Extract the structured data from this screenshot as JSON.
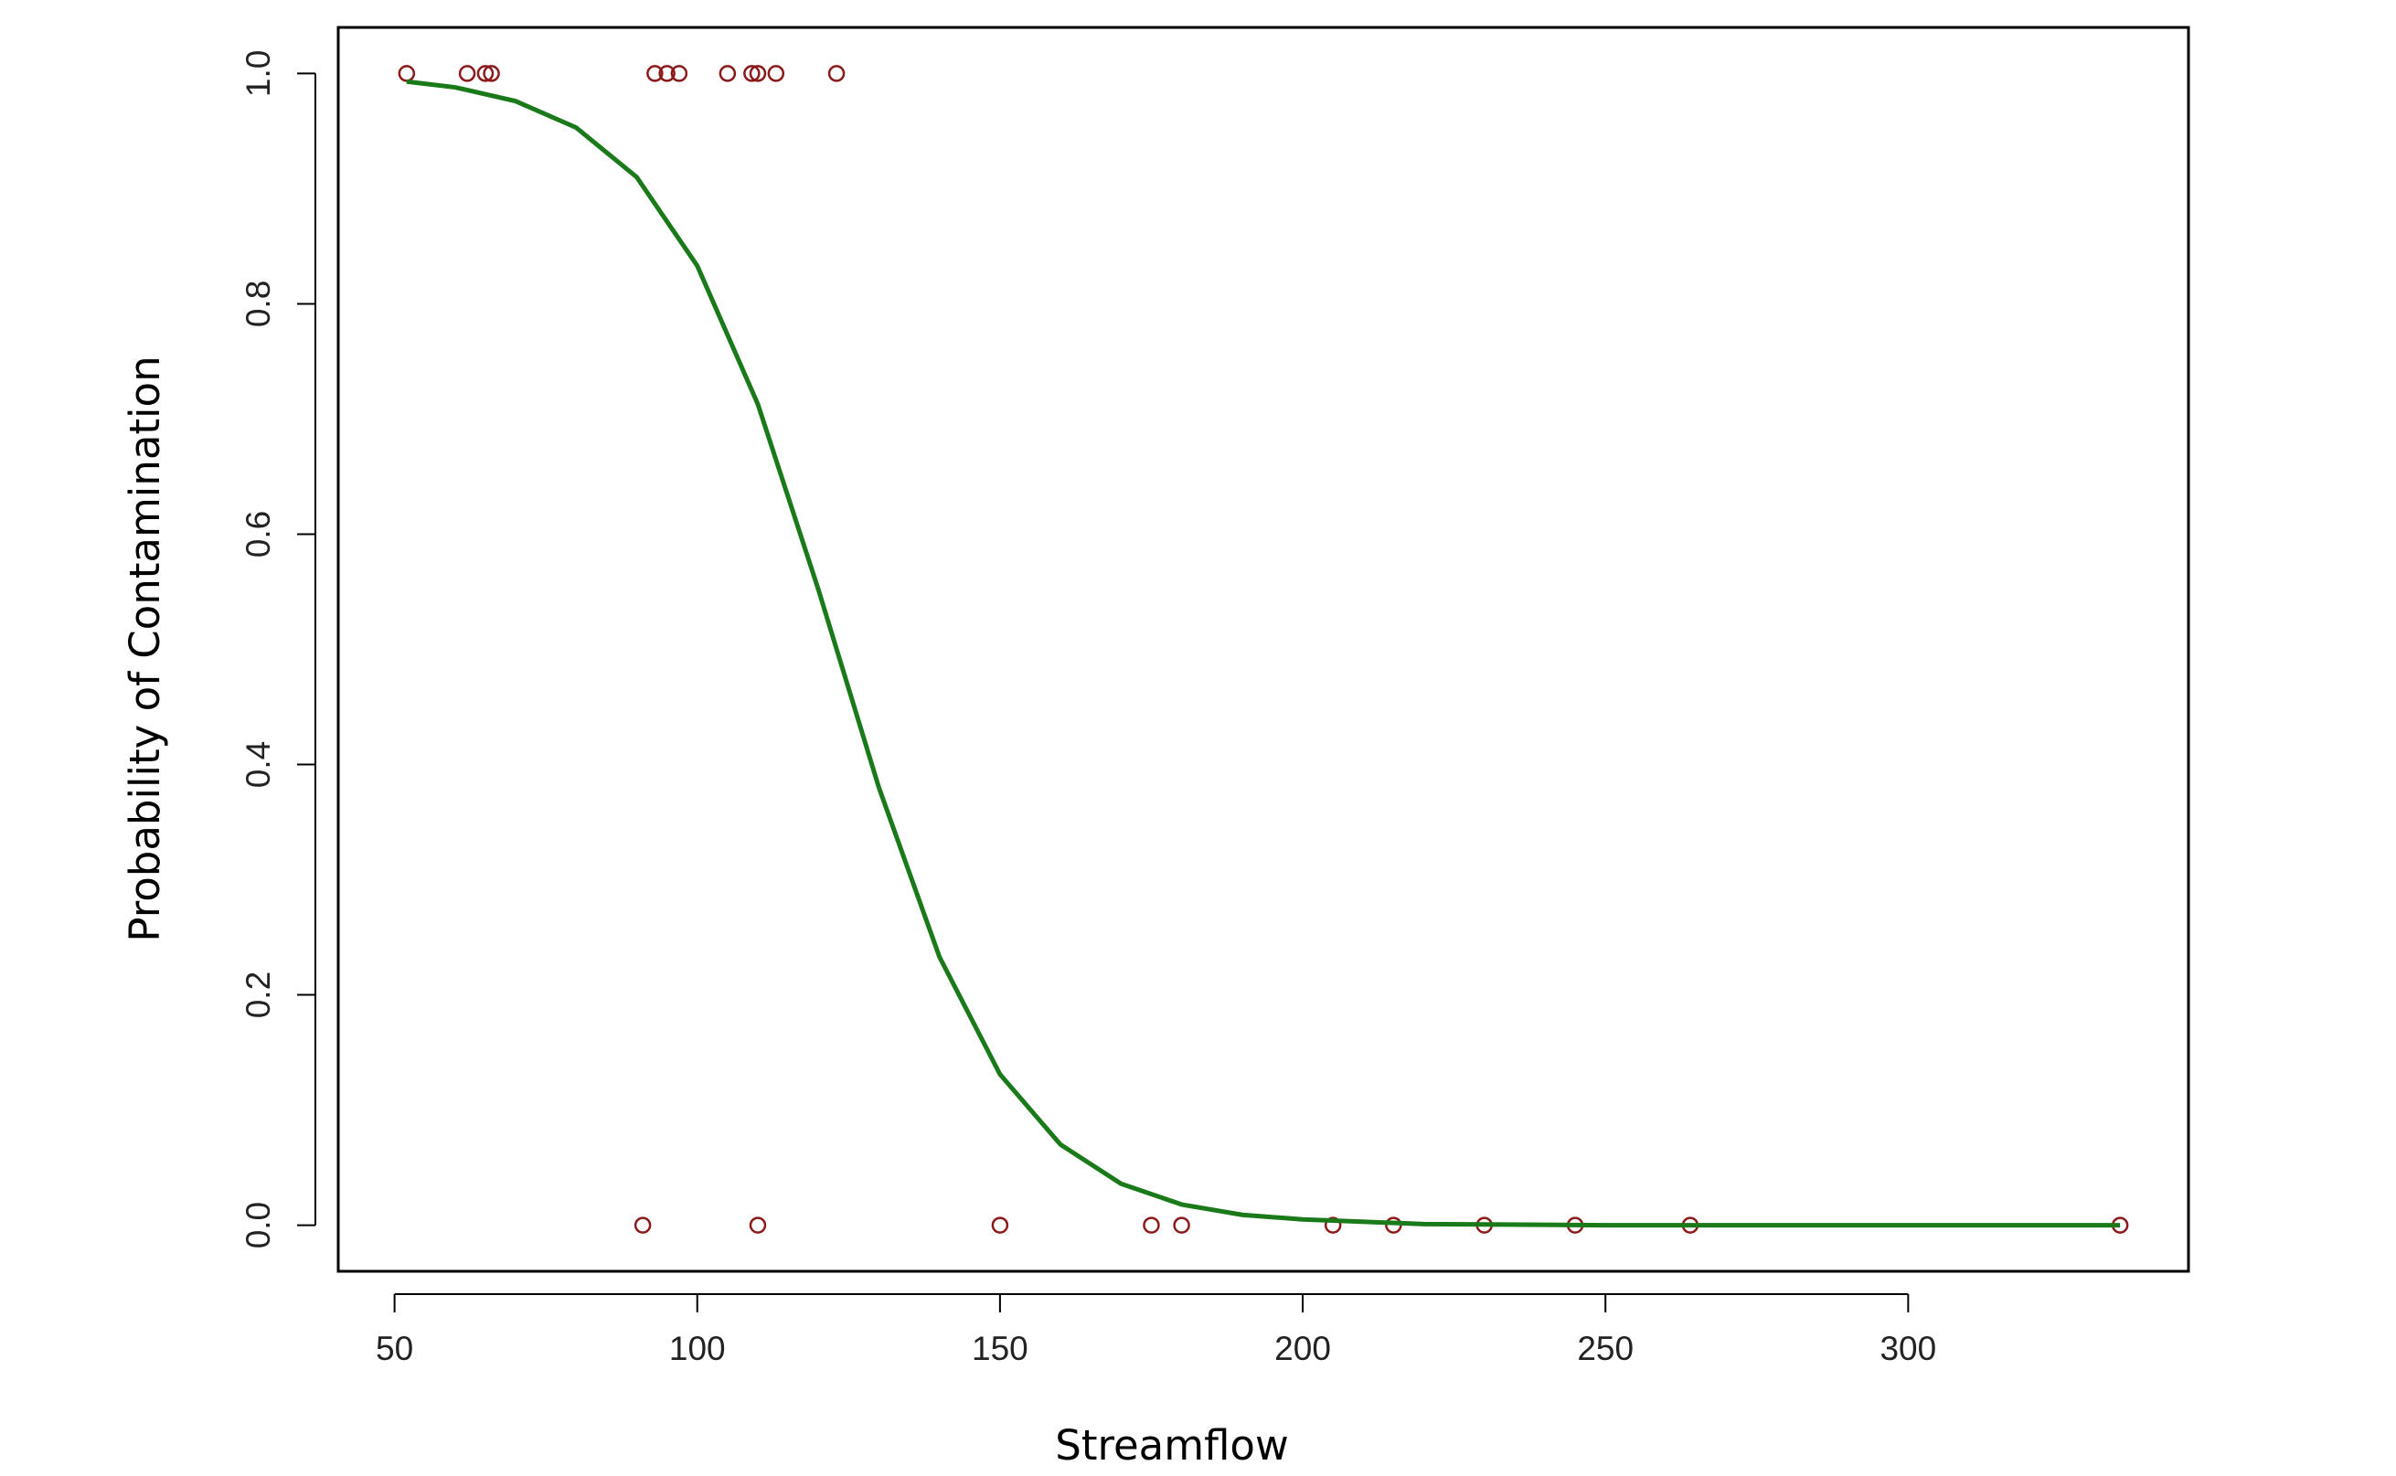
{
  "chart_data": {
    "type": "scatter",
    "x_label": "Streamflow",
    "y_label": "Probability of Contamination",
    "xlim": [
      40.7,
      346.3
    ],
    "ylim": [
      -0.04,
      1.04
    ],
    "xticks": [
      50,
      100,
      150,
      200,
      250,
      300
    ],
    "yticks": [
      {
        "value": 0,
        "label": "0.0"
      },
      0.2,
      0.4,
      0.6,
      0.8,
      {
        "value": 1,
        "label": "1.0"
      }
    ],
    "series": [
      {
        "type": "scatter",
        "color": "#8b1a1a",
        "x": [
          52,
          62,
          65,
          66,
          93,
          95,
          97,
          105,
          109,
          110,
          113,
          123,
          91,
          110,
          150,
          175,
          180,
          205,
          215,
          230,
          245,
          264,
          335
        ],
        "values": [
          1,
          1,
          1,
          1,
          1,
          1,
          1,
          1,
          1,
          1,
          1,
          1,
          0,
          0,
          0,
          0,
          0,
          0,
          0,
          0,
          0,
          0,
          0
        ]
      },
      {
        "type": "line",
        "color": "#1a7a1a",
        "x": [
          52,
          60,
          70,
          80,
          90,
          100,
          110,
          120,
          130,
          140,
          150,
          160,
          170,
          180,
          190,
          200,
          220,
          250,
          300,
          335
        ],
        "values": [
          0.993,
          0.988,
          0.976,
          0.953,
          0.91,
          0.833,
          0.713,
          0.552,
          0.38,
          0.233,
          0.131,
          0.07,
          0.036,
          0.018,
          0.009,
          0.005,
          0.001,
          0.0,
          0.0,
          0.0
        ]
      }
    ]
  }
}
